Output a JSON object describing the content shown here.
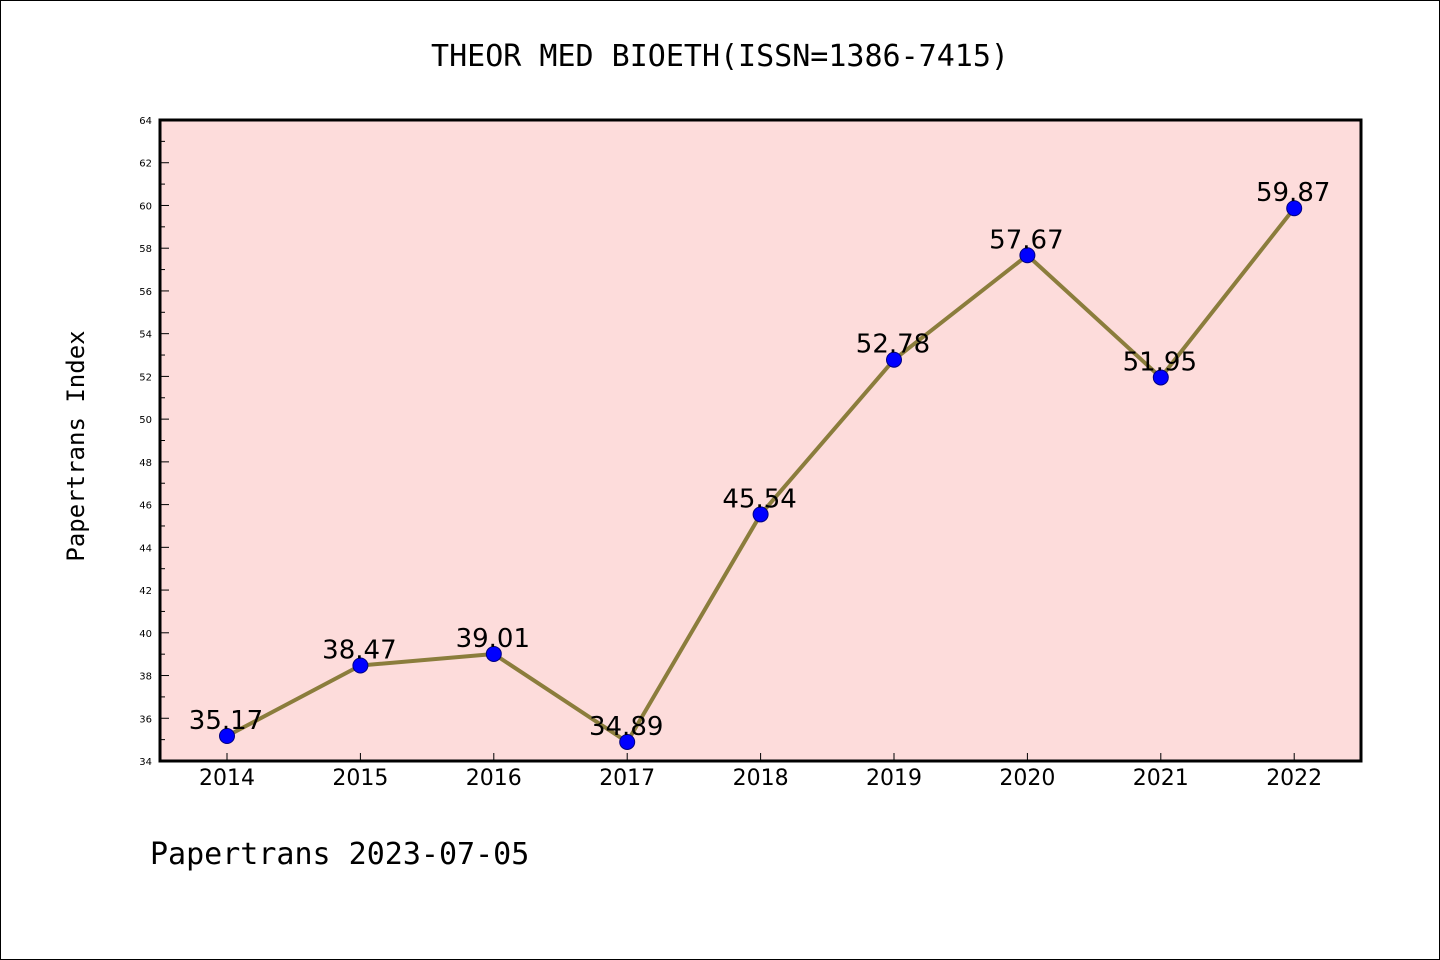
{
  "chart_data": {
    "type": "line",
    "title": "THEOR MED BIOETH(ISSN=1386-7415)",
    "ylabel": "Papertrans Index",
    "xlabel": "",
    "footer": "Papertrans 2023-07-05",
    "x": [
      "2014",
      "2015",
      "2016",
      "2017",
      "2018",
      "2019",
      "2020",
      "2021",
      "2022"
    ],
    "values": [
      35.17,
      38.47,
      39.01,
      34.89,
      45.54,
      52.78,
      57.67,
      51.95,
      59.87
    ],
    "data_labels": [
      "35.17",
      "38.47",
      "39.01",
      "34.89",
      "45.54",
      "52.78",
      "57.67",
      "51.95",
      "59.87"
    ],
    "ylim": [
      34,
      64
    ],
    "yticks": [
      "34",
      "36",
      "38",
      "40",
      "42",
      "44",
      "46",
      "48",
      "50",
      "52",
      "54",
      "56",
      "58",
      "60",
      "62",
      "64"
    ],
    "grid": false,
    "colors": {
      "plot_background": "#fddcdb",
      "line": "#8b7d3c",
      "marker": "#0000ff",
      "marker_edge": "#000080"
    }
  }
}
